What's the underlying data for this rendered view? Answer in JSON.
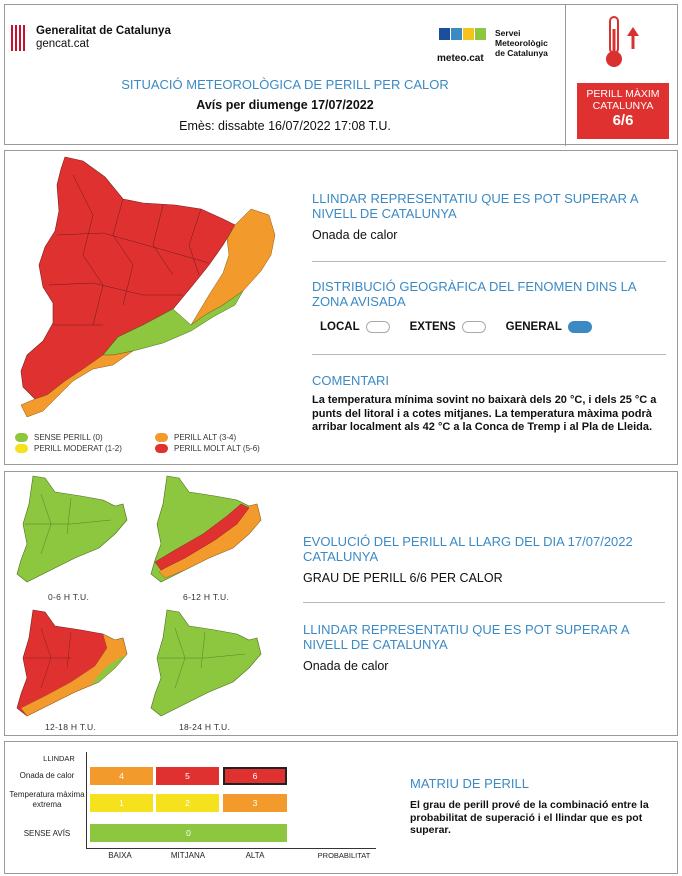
{
  "header": {
    "org_name": "Generalitat de Catalunya",
    "org_site": "gencat.cat",
    "meteo_logo_text": "meteo.cat",
    "meteo_service_line1": "Servei",
    "meteo_service_line2": "Meteorològic",
    "meteo_service_line3": "de Catalunya",
    "title": "SITUACIÓ METEOROLÒGICA DE PERILL PER CALOR",
    "forecast_date": "Avís per diumenge 17/07/2022",
    "issued": "Emès: dissabte 16/07/2022 17:08 T.U.",
    "max_label_line1": "PERILL MÀXIM",
    "max_label_line2": "CATALUNYA",
    "max_level": "6/6",
    "thermometer_icon": "thermometer-up-arrow-icon"
  },
  "colors": {
    "accent_blue": "#3b8ac4",
    "sense_perill": "#8dc63f",
    "perill_moderat": "#f6e11e",
    "perill_alt": "#f39a2c",
    "perill_molt_alt": "#e03131"
  },
  "main": {
    "threshold_title": "LLINDAR REPRESENTATIU QUE ES POT SUPERAR A NIVELL DE CATALUNYA",
    "threshold_value": "Onada de calor",
    "distribution_title": "DISTRIBUCIÓ GEOGRÀFICA DEL FENOMEN DINS LA ZONA AVISADA",
    "distribution": [
      {
        "label": "LOCAL",
        "active": false
      },
      {
        "label": "EXTENS",
        "active": false
      },
      {
        "label": "GENERAL",
        "active": true
      }
    ],
    "comments_title": "COMENTARI",
    "comments_text": "La temperatura mínima sovint no baixarà dels 20 °C, i dels 25 °C a punts del litoral i a cotes mitjanes. La temperatura màxima podrà arribar localment als 42 °C a la Conca de Tremp i al Pla de Lleida.",
    "legend": [
      {
        "label": "SENSE PERILL (0)",
        "color": "#8dc63f"
      },
      {
        "label": "PERILL MODERAT (1-2)",
        "color": "#f6e11e"
      },
      {
        "label": "PERILL ALT (3-4)",
        "color": "#f39a2c"
      },
      {
        "label": "PERILL MOLT ALT (5-6)",
        "color": "#e03131"
      }
    ]
  },
  "evolution": {
    "maps": [
      {
        "label": "0-6 H T.U."
      },
      {
        "label": "6-12 H T.U."
      },
      {
        "label": "12-18 H T.U."
      },
      {
        "label": "18-24 H T.U."
      }
    ],
    "title": "EVOLUCIÓ DEL PERILL AL LLARG DEL DIA 17/07/2022 CATALUNYA",
    "value": "GRAU DE PERILL 6/6 PER CALOR",
    "threshold_title": "LLINDAR REPRESENTATIU QUE ES POT SUPERAR A NIVELL DE CATALUNYA",
    "threshold_value": "Onada de calor"
  },
  "matrix": {
    "y_axis_title": "LLINDAR",
    "x_axis_title": "PROBABILITAT",
    "rows": [
      {
        "label": "Onada de calor",
        "cells": [
          "4",
          "5",
          "6"
        ],
        "colors": [
          "#f39a2c",
          "#e03131",
          "#e03131"
        ],
        "highlight": 2
      },
      {
        "label": "Temperatura màxima extrema",
        "cells": [
          "1",
          "2",
          "3"
        ],
        "colors": [
          "#f6e11e",
          "#f6e11e",
          "#f39a2c"
        ],
        "highlight": -1
      },
      {
        "label": "SENSE AVÍS",
        "cells": [
          "0"
        ],
        "colors": [
          "#8dc63f"
        ],
        "highlight": -1
      }
    ],
    "columns": [
      "BAIXA",
      "MITJANA",
      "ALTA"
    ],
    "title": "MATRIU DE PERILL",
    "description": "El grau de perill prové de la combinació entre la probabilitat de superació i el llindar que es pot superar."
  }
}
